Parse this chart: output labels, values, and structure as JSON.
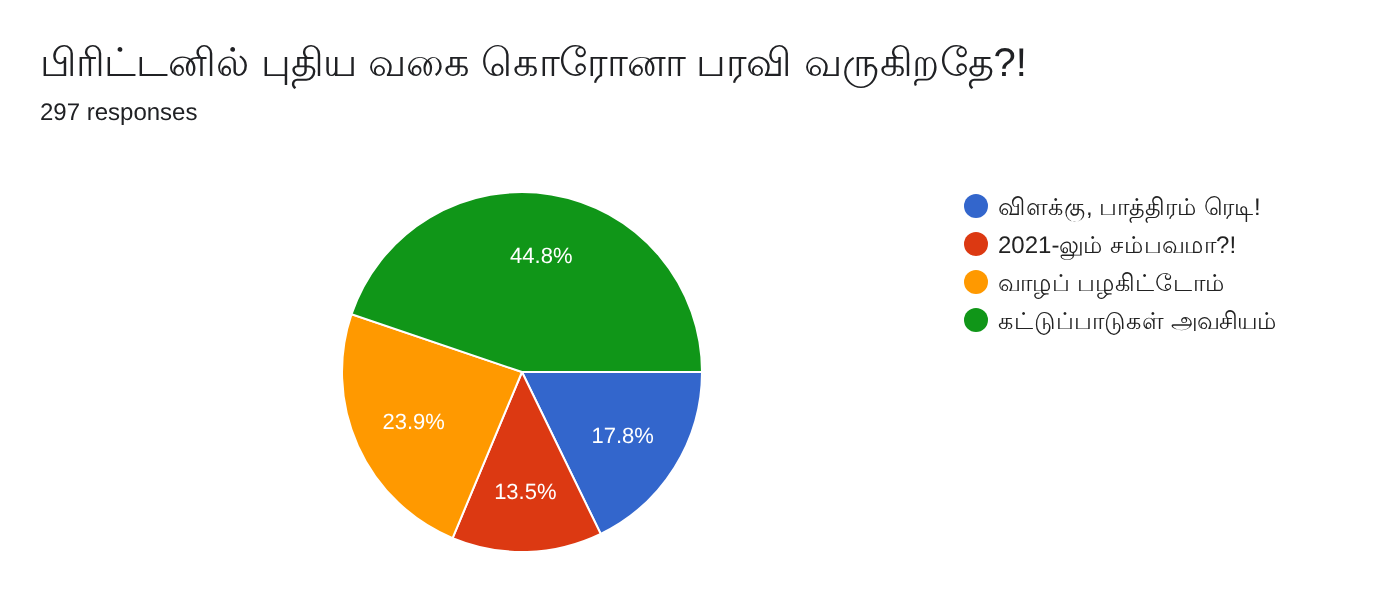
{
  "chart_data": {
    "type": "pie",
    "title": "பிரிட்டனில் புதிய வகை கொரோனா பரவி வருகிறதே?!",
    "subtitle": "297 responses",
    "categories": [
      "விளக்கு, பாத்திரம் ரெடி!",
      "2021-லும் சம்பவமா?!",
      "வாழப் பழகிட்டோம்",
      "கட்டுப்பாடுகள் அவசியம்"
    ],
    "values": [
      17.8,
      13.5,
      23.9,
      44.8
    ],
    "colors": [
      "#3366cc",
      "#dc3912",
      "#ff9900",
      "#109618"
    ],
    "value_labels": [
      "17.8%",
      "13.5%",
      "23.9%",
      "44.8%"
    ],
    "legend": "right"
  }
}
